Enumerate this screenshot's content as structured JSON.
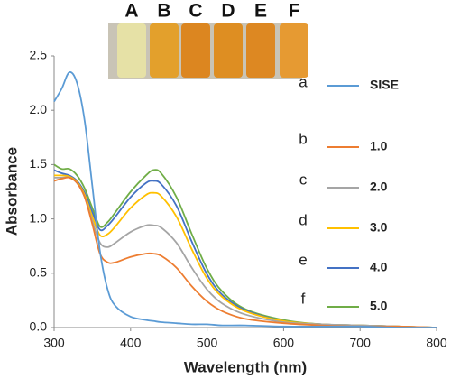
{
  "chart_data": {
    "type": "line",
    "x_label": "Wavelength (nm)",
    "y_label": "Absorbance",
    "inset_labels": [
      "A",
      "B",
      "C",
      "D",
      "E",
      "F"
    ],
    "x": [
      300,
      310,
      320,
      330,
      340,
      350,
      360,
      370,
      380,
      400,
      420,
      430,
      440,
      460,
      480,
      500,
      520,
      550,
      600,
      650,
      700,
      750,
      800
    ],
    "series": [
      {
        "name": "SISE",
        "letter": "a",
        "color": "#5b9bd5",
        "values": [
          2.08,
          2.2,
          2.35,
          2.25,
          1.9,
          1.3,
          0.7,
          0.35,
          0.2,
          0.1,
          0.07,
          0.06,
          0.05,
          0.04,
          0.03,
          0.03,
          0.02,
          0.02,
          0.01,
          0.01,
          0.01,
          0,
          0
        ]
      },
      {
        "name": "1.0",
        "letter": "b",
        "color": "#ed7d31",
        "values": [
          1.35,
          1.37,
          1.38,
          1.33,
          1.2,
          0.95,
          0.68,
          0.6,
          0.6,
          0.65,
          0.68,
          0.68,
          0.66,
          0.55,
          0.38,
          0.24,
          0.15,
          0.08,
          0.04,
          0.02,
          0.01,
          0.01,
          0
        ]
      },
      {
        "name": "2.0",
        "letter": "c",
        "color": "#a5a5a5",
        "values": [
          1.38,
          1.38,
          1.38,
          1.33,
          1.2,
          0.98,
          0.78,
          0.74,
          0.78,
          0.88,
          0.94,
          0.94,
          0.92,
          0.78,
          0.55,
          0.35,
          0.22,
          0.12,
          0.05,
          0.03,
          0.02,
          0.01,
          0
        ]
      },
      {
        "name": "3.0",
        "letter": "d",
        "color": "#ffc000",
        "values": [
          1.4,
          1.4,
          1.39,
          1.34,
          1.22,
          1.02,
          0.85,
          0.86,
          0.93,
          1.1,
          1.22,
          1.24,
          1.21,
          1.02,
          0.72,
          0.45,
          0.28,
          0.15,
          0.06,
          0.03,
          0.02,
          0.01,
          0
        ]
      },
      {
        "name": "4.0",
        "letter": "e",
        "color": "#4472c4",
        "values": [
          1.45,
          1.42,
          1.4,
          1.35,
          1.24,
          1.06,
          0.9,
          0.94,
          1.02,
          1.2,
          1.33,
          1.35,
          1.32,
          1.12,
          0.79,
          0.49,
          0.3,
          0.16,
          0.06,
          0.03,
          0.02,
          0.01,
          0
        ]
      },
      {
        "name": "5.0",
        "letter": "f",
        "color": "#70ad47",
        "values": [
          1.5,
          1.46,
          1.46,
          1.4,
          1.28,
          1.1,
          0.93,
          0.97,
          1.06,
          1.25,
          1.4,
          1.45,
          1.42,
          1.2,
          0.86,
          0.54,
          0.33,
          0.17,
          0.07,
          0.03,
          0.02,
          0.01,
          0
        ]
      }
    ],
    "xlim": [
      300,
      800
    ],
    "xticks": [
      300,
      400,
      500,
      600,
      700,
      800
    ],
    "ylim": [
      0,
      2.5
    ],
    "yticks": [
      {
        "value": 0,
        "label": "0.0"
      },
      0.5,
      {
        "value": 1,
        "label": "1.0"
      },
      1.5,
      {
        "value": 2,
        "label": "2.0"
      },
      2.5
    ],
    "grid": false
  }
}
